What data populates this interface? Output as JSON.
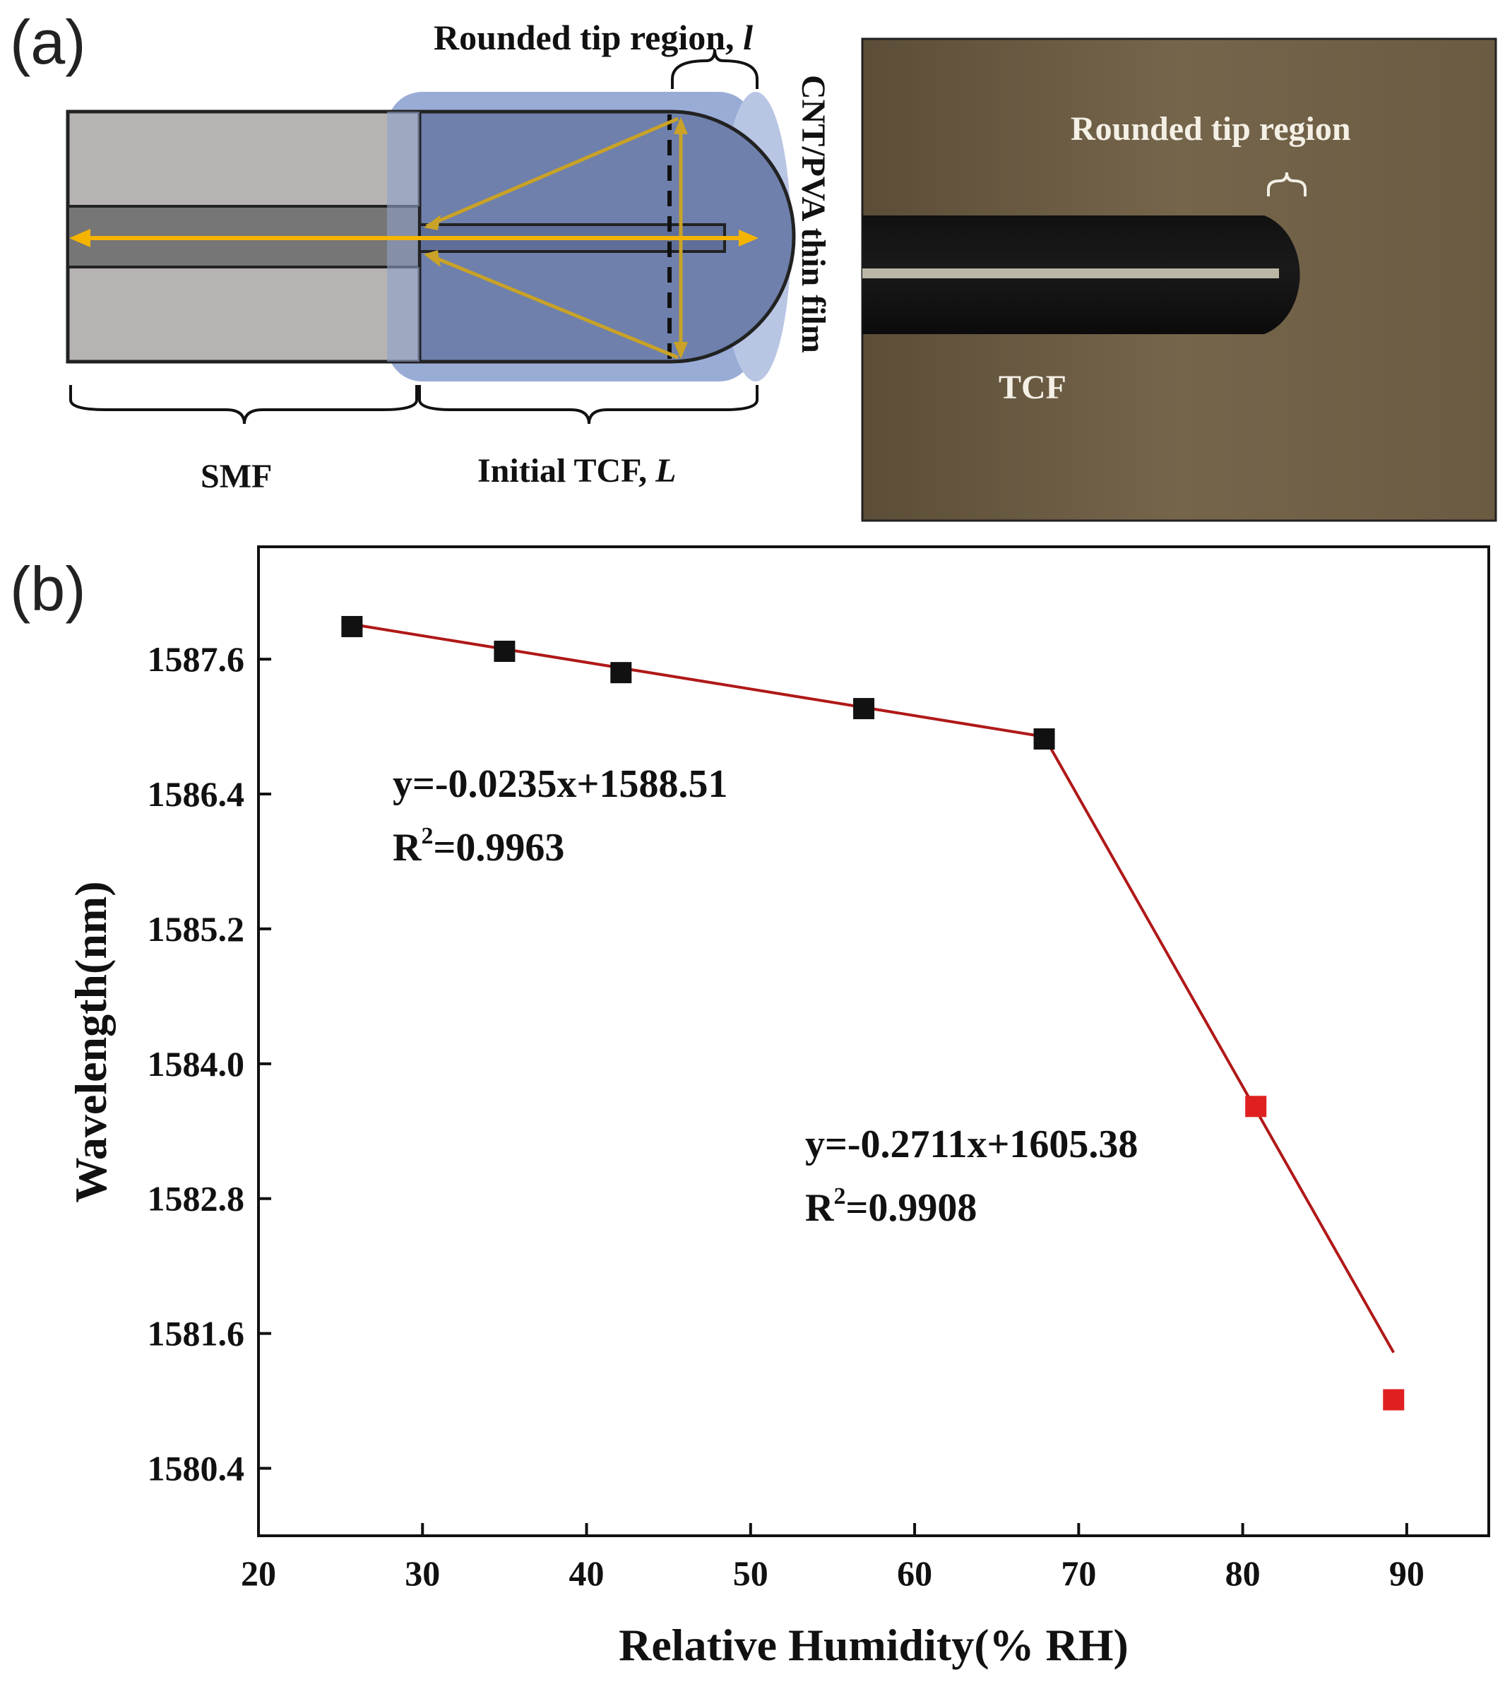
{
  "panel_a": {
    "letter": "(a)",
    "labels": {
      "rounded_tip": "Rounded tip region, ",
      "rounded_tip_var": "l",
      "film": "CNT/PVA thin film",
      "smf": "SMF",
      "tcf_initial": "Initial TCF, ",
      "tcf_initial_var": "L"
    },
    "photo": {
      "rounded_tip": "Rounded tip region",
      "tcf": "TCF"
    },
    "colors": {
      "film": "#8ea3d1",
      "fiber": "#b7b3b3",
      "core": "#777777",
      "ray": "#f5b400",
      "photo_bg": "#6a5a42"
    }
  },
  "panel_b": {
    "letter": "(b)",
    "equation1": "y=-0.0235x+1588.51",
    "r2_1_prefix": "R",
    "r2_1_sup": "2",
    "r2_1_value": "=0.9963",
    "equation2": "y=-0.2711x+1605.38",
    "r2_2_prefix": "R",
    "r2_2_sup": "2",
    "r2_2_value": "=0.9908"
  },
  "chart_data": {
    "type": "scatter",
    "xlabel": "Relative Humidity(% RH)",
    "ylabel": "Wavelength(nm)",
    "xlim": [
      20,
      95
    ],
    "ylim": [
      1579.8,
      1588.6
    ],
    "xticks": [
      20,
      30,
      40,
      50,
      60,
      70,
      80,
      90
    ],
    "yticks": [
      1580.4,
      1581.6,
      1582.8,
      1584.0,
      1585.2,
      1586.4,
      1587.6
    ],
    "ytick_labels": [
      "1580.4",
      "1581.6",
      "1582.8",
      "1584.0",
      "1585.2",
      "1586.4",
      "1587.6"
    ],
    "series": [
      {
        "color": "#111111",
        "x": [
          25.7,
          35.0,
          42.1,
          56.9,
          67.9
        ],
        "y": [
          1587.89,
          1587.67,
          1587.48,
          1587.16,
          1586.89
        ]
      },
      {
        "color": "#e02020",
        "x": [
          80.8,
          89.2
        ],
        "y": [
          1583.62,
          1581.01
        ]
      }
    ],
    "fit_lines": [
      {
        "color": "#b01818",
        "x": [
          25.7,
          67.9
        ],
        "y": [
          1587.91,
          1586.91
        ]
      },
      {
        "color": "#b01818",
        "x": [
          67.9,
          89.2
        ],
        "y": [
          1586.91,
          1581.43
        ]
      }
    ],
    "grid": false
  }
}
